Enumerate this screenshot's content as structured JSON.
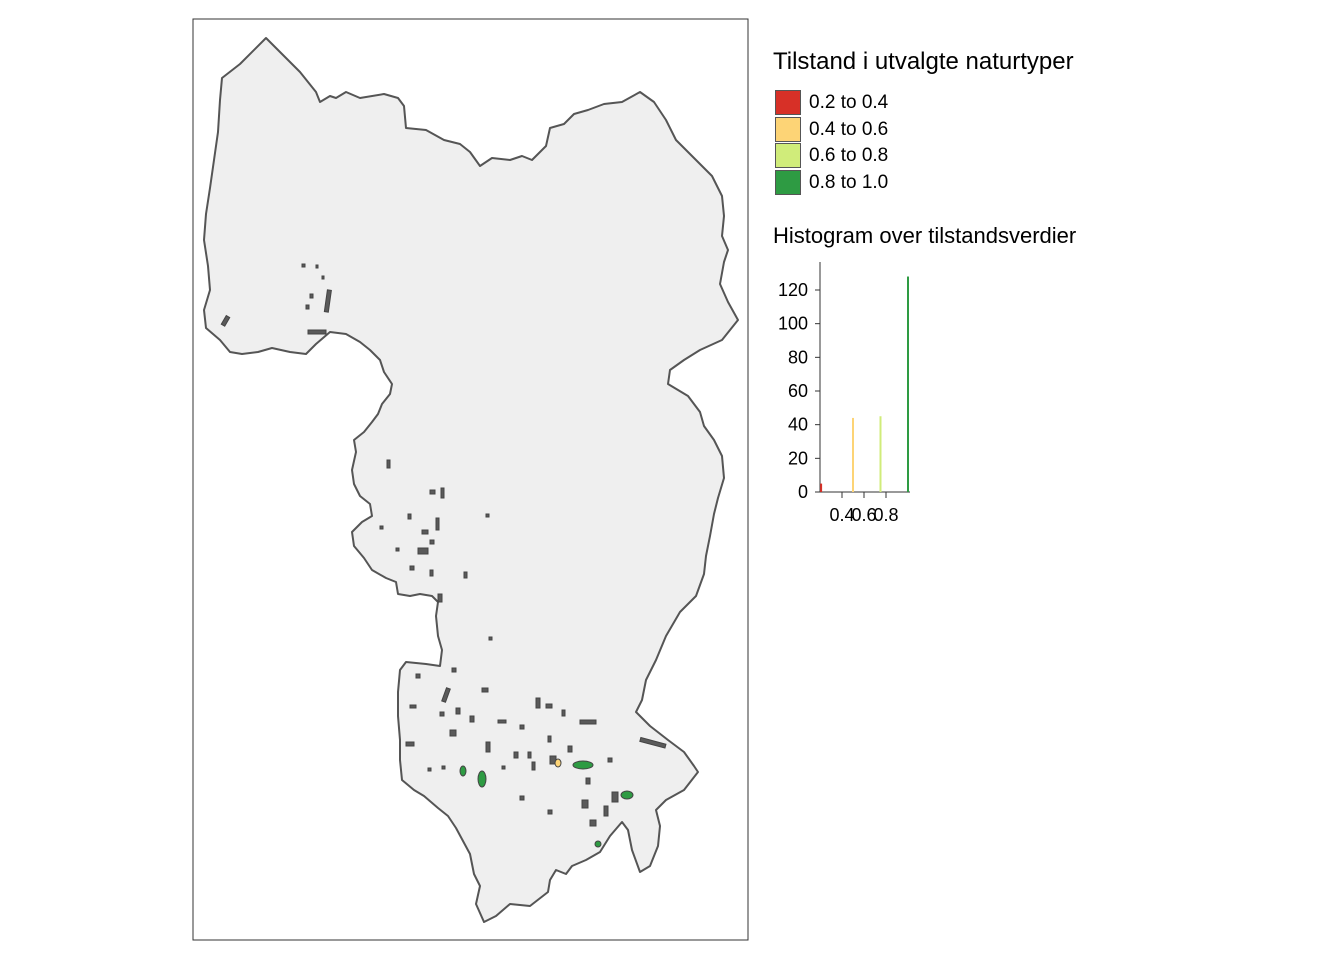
{
  "legend": {
    "title": "Tilstand i utvalgte naturtyper",
    "items": [
      {
        "label": "0.2 to 0.4",
        "color": "#d73027"
      },
      {
        "label": "0.4 to 0.6",
        "color": "#fdd476"
      },
      {
        "label": "0.6 to 0.8",
        "color": "#d0ec7a"
      },
      {
        "label": "0.8 to 1.0",
        "color": "#2e9b43"
      }
    ]
  },
  "map": {
    "region_fill": "#efefef",
    "region_stroke": "#555555",
    "frame_stroke": "#333333"
  },
  "chart_data": {
    "type": "bar",
    "title": "Histogram over tilstandsverdier",
    "xlabel": "",
    "ylabel": "",
    "x_ticks": [
      "0.4",
      "0.6",
      "0.8"
    ],
    "y_ticks": [
      "0",
      "20",
      "40",
      "60",
      "80",
      "100",
      "120"
    ],
    "ylim": [
      0,
      135
    ],
    "xlim": [
      0.2,
      1.0
    ],
    "bars": [
      {
        "x": 0.21,
        "value": 5,
        "color": "#d73027"
      },
      {
        "x": 0.5,
        "value": 44,
        "color": "#fdd476"
      },
      {
        "x": 0.75,
        "value": 45,
        "color": "#d0ec7a"
      },
      {
        "x": 1.0,
        "value": 128,
        "color": "#2e9b43"
      }
    ],
    "grid": false
  }
}
